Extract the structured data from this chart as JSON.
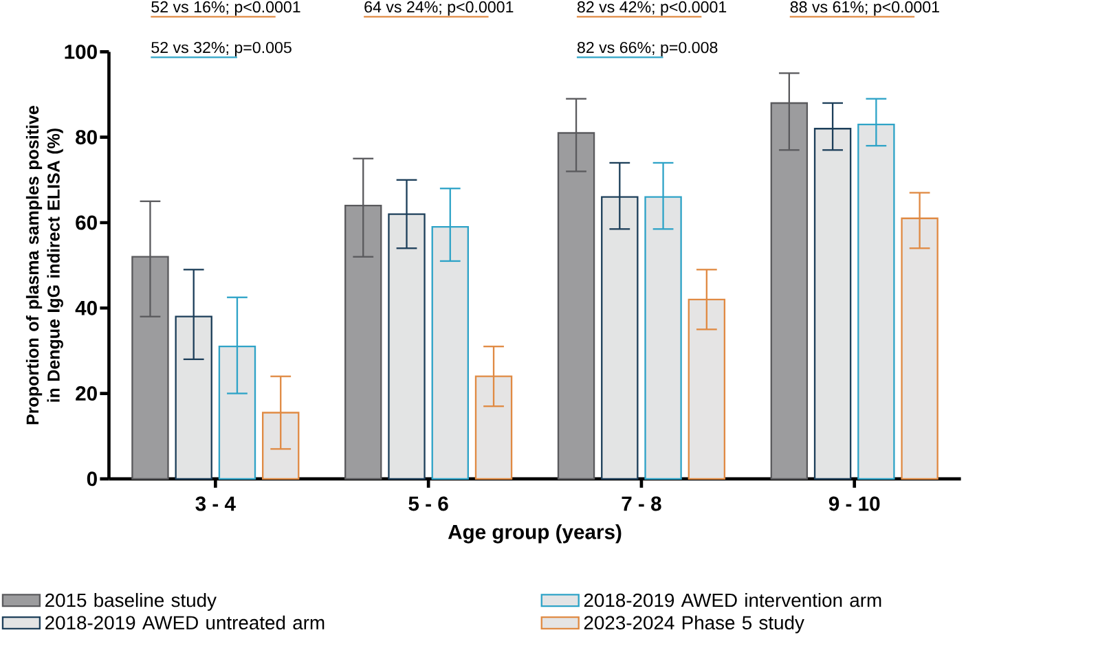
{
  "chart_data": {
    "type": "bar",
    "xlabel": "Age group (years)",
    "ylabel": "Proportion of plasma samples positive in Dengue IgG indirect ELISA (%)",
    "categories": [
      "3 - 4",
      "5 - 6",
      "7 - 8",
      "9 - 10"
    ],
    "series": [
      {
        "name": "2015 baseline study",
        "color": "#5a5a5d",
        "values": [
          52,
          64,
          81,
          88
        ],
        "errors": [
          [
            38,
            65
          ],
          [
            52,
            75
          ],
          [
            72,
            89
          ],
          [
            77,
            95
          ]
        ]
      },
      {
        "name": "2018-2019 AWED untreated arm",
        "color": "#1d3f5a",
        "values": [
          38,
          62,
          66,
          82
        ],
        "errors": [
          [
            28,
            49
          ],
          [
            54,
            70
          ],
          [
            58.5,
            74
          ],
          [
            77,
            88
          ]
        ]
      },
      {
        "name": "2018-2019 AWED intervention arm",
        "color": "#2ea3c7",
        "values": [
          31,
          59,
          66,
          83
        ],
        "errors": [
          [
            20,
            42.5
          ],
          [
            51,
            68
          ],
          [
            58.5,
            74
          ],
          [
            78,
            89
          ]
        ]
      },
      {
        "name": "2023-2024 Phase 5 study",
        "color": "#e08a43",
        "values": [
          15.5,
          24,
          42,
          61
        ],
        "errors": [
          [
            7,
            24
          ],
          [
            17,
            31
          ],
          [
            35,
            49
          ],
          [
            54,
            67
          ]
        ]
      }
    ],
    "ylim": [
      0,
      100
    ],
    "yticks": [
      0,
      20,
      40,
      60,
      80,
      100
    ],
    "legend": "bottom",
    "annotations": [
      "52 vs 16%; p<0.0001",
      "52 vs 32%; p=0.005",
      "64 vs 24%; p<0.0001",
      "82 vs 42%; p<0.0001",
      "82 vs 66%; p=0.008",
      "88 vs 61%; p<0.0001"
    ]
  }
}
